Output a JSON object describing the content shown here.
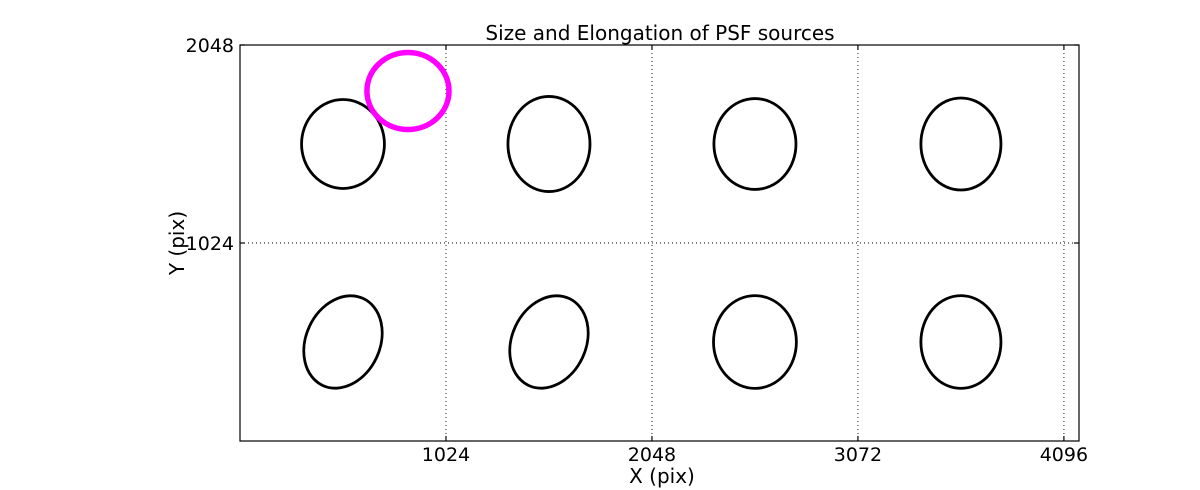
{
  "figure": {
    "background": "#ffffff"
  },
  "chart_data": {
    "type": "scatter",
    "glyph": "ellipse",
    "title": "Size and Elongation of PSF sources",
    "xlabel": "X (pix)",
    "ylabel": "Y (pix)",
    "xlim": [
      0,
      4171
    ],
    "ylim": [
      0,
      2048
    ],
    "xticks": [
      1024,
      2048,
      3072,
      4096
    ],
    "yticks": [
      1024,
      2048
    ],
    "grid": {
      "style": "dotted",
      "color": "#000000",
      "x_values": [
        1024,
        2048,
        3072,
        4096
      ],
      "y_values": [
        1024
      ]
    },
    "legend": "none",
    "colors": {
      "psf_ellipse": "#000000",
      "highlight_ellipse": "#ff00ff"
    },
    "sources": [
      {
        "x": 512,
        "y": 1536,
        "semi_x": 206,
        "semi_y": 230,
        "angle_deg": 0,
        "color": "#000000",
        "line_width": 2.8
      },
      {
        "x": 1536,
        "y": 1536,
        "semi_x": 204,
        "semi_y": 246,
        "angle_deg": 0,
        "color": "#000000",
        "line_width": 2.8
      },
      {
        "x": 2560,
        "y": 1536,
        "semi_x": 204,
        "semi_y": 235,
        "angle_deg": 0,
        "color": "#000000",
        "line_width": 2.8
      },
      {
        "x": 3584,
        "y": 1536,
        "semi_x": 199,
        "semi_y": 238,
        "angle_deg": 0,
        "color": "#000000",
        "line_width": 2.8
      },
      {
        "x": 512,
        "y": 512,
        "semi_x": 184,
        "semi_y": 248,
        "angle_deg": -25,
        "color": "#000000",
        "line_width": 2.8
      },
      {
        "x": 1536,
        "y": 512,
        "semi_x": 184,
        "semi_y": 248,
        "angle_deg": -25,
        "color": "#000000",
        "line_width": 2.8
      },
      {
        "x": 2560,
        "y": 512,
        "semi_x": 206,
        "semi_y": 240,
        "angle_deg": 0,
        "color": "#000000",
        "line_width": 2.8
      },
      {
        "x": 3584,
        "y": 512,
        "semi_x": 199,
        "semi_y": 240,
        "angle_deg": 0,
        "color": "#000000",
        "line_width": 2.8
      },
      {
        "x": 835,
        "y": 1810,
        "semi_x": 204,
        "semi_y": 199,
        "angle_deg": 0,
        "color": "#ff00ff",
        "line_width": 5.5
      }
    ]
  }
}
